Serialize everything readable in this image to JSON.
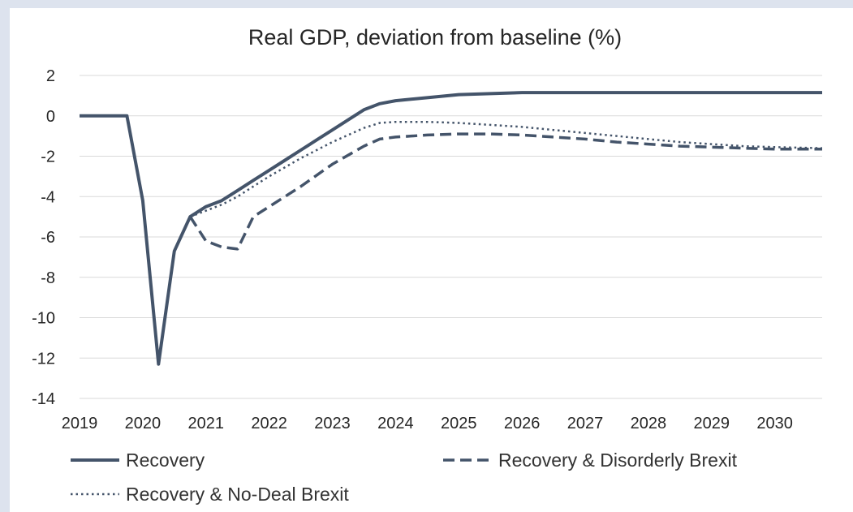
{
  "chart_data": {
    "type": "line",
    "title": "Real GDP, deviation from baseline (%)",
    "xlabel": "",
    "ylabel": "",
    "x_tick_labels": [
      "2019",
      "2020",
      "2021",
      "2022",
      "2023",
      "2024",
      "2025",
      "2026",
      "2027",
      "2028",
      "2029",
      "2030"
    ],
    "y_tick_labels": [
      "2",
      "0",
      "-2",
      "-4",
      "-6",
      "-8",
      "-10",
      "-12",
      "-14"
    ],
    "xlim": [
      2019.0,
      2030.75
    ],
    "ylim": [
      -14,
      2
    ],
    "grid": true,
    "legend_position": "bottom",
    "line_color": "#44546a",
    "series": [
      {
        "name": "Recovery",
        "style": "solid",
        "points": [
          [
            2019.0,
            0
          ],
          [
            2019.75,
            0
          ],
          [
            2020.0,
            -4.2
          ],
          [
            2020.25,
            -12.3
          ],
          [
            2020.5,
            -6.7
          ],
          [
            2020.75,
            -5.0
          ],
          [
            2021.0,
            -4.5
          ],
          [
            2021.25,
            -4.2
          ],
          [
            2021.5,
            -3.7
          ],
          [
            2021.75,
            -3.2
          ],
          [
            2022.0,
            -2.7
          ],
          [
            2022.25,
            -2.2
          ],
          [
            2022.5,
            -1.7
          ],
          [
            2022.75,
            -1.2
          ],
          [
            2023.0,
            -0.7
          ],
          [
            2023.25,
            -0.2
          ],
          [
            2023.5,
            0.3
          ],
          [
            2023.75,
            0.6
          ],
          [
            2024.0,
            0.75
          ],
          [
            2024.5,
            0.9
          ],
          [
            2025.0,
            1.05
          ],
          [
            2025.5,
            1.1
          ],
          [
            2026.0,
            1.15
          ],
          [
            2026.5,
            1.15
          ],
          [
            2027.0,
            1.15
          ],
          [
            2028.0,
            1.15
          ],
          [
            2029.0,
            1.15
          ],
          [
            2029.5,
            1.15
          ],
          [
            2030.0,
            1.15
          ],
          [
            2030.75,
            1.15
          ]
        ]
      },
      {
        "name": "Recovery & Disorderly Brexit",
        "style": "dashed",
        "points": [
          [
            2020.75,
            -5.0
          ],
          [
            2021.0,
            -6.2
          ],
          [
            2021.25,
            -6.5
          ],
          [
            2021.5,
            -6.6
          ],
          [
            2021.75,
            -5.0
          ],
          [
            2022.0,
            -4.5
          ],
          [
            2022.5,
            -3.5
          ],
          [
            2023.0,
            -2.4
          ],
          [
            2023.5,
            -1.5
          ],
          [
            2023.75,
            -1.15
          ],
          [
            2024.0,
            -1.05
          ],
          [
            2024.5,
            -0.95
          ],
          [
            2025.0,
            -0.9
          ],
          [
            2025.5,
            -0.9
          ],
          [
            2026.0,
            -0.95
          ],
          [
            2026.5,
            -1.05
          ],
          [
            2027.0,
            -1.15
          ],
          [
            2027.5,
            -1.3
          ],
          [
            2028.0,
            -1.4
          ],
          [
            2028.5,
            -1.5
          ],
          [
            2029.0,
            -1.55
          ],
          [
            2029.5,
            -1.6
          ],
          [
            2030.0,
            -1.65
          ],
          [
            2030.75,
            -1.65
          ]
        ]
      },
      {
        "name": "Recovery & No-Deal Brexit",
        "style": "dotted",
        "points": [
          [
            2020.75,
            -5.0
          ],
          [
            2021.0,
            -4.7
          ],
          [
            2021.25,
            -4.4
          ],
          [
            2021.5,
            -4.0
          ],
          [
            2021.75,
            -3.5
          ],
          [
            2022.0,
            -3.0
          ],
          [
            2022.5,
            -2.1
          ],
          [
            2023.0,
            -1.3
          ],
          [
            2023.5,
            -0.6
          ],
          [
            2023.75,
            -0.35
          ],
          [
            2024.0,
            -0.3
          ],
          [
            2024.5,
            -0.3
          ],
          [
            2025.0,
            -0.35
          ],
          [
            2025.5,
            -0.45
          ],
          [
            2026.0,
            -0.55
          ],
          [
            2026.5,
            -0.7
          ],
          [
            2027.0,
            -0.85
          ],
          [
            2027.5,
            -1.0
          ],
          [
            2028.0,
            -1.15
          ],
          [
            2028.5,
            -1.3
          ],
          [
            2029.0,
            -1.4
          ],
          [
            2029.5,
            -1.5
          ],
          [
            2030.0,
            -1.55
          ],
          [
            2030.75,
            -1.6
          ]
        ]
      }
    ]
  }
}
